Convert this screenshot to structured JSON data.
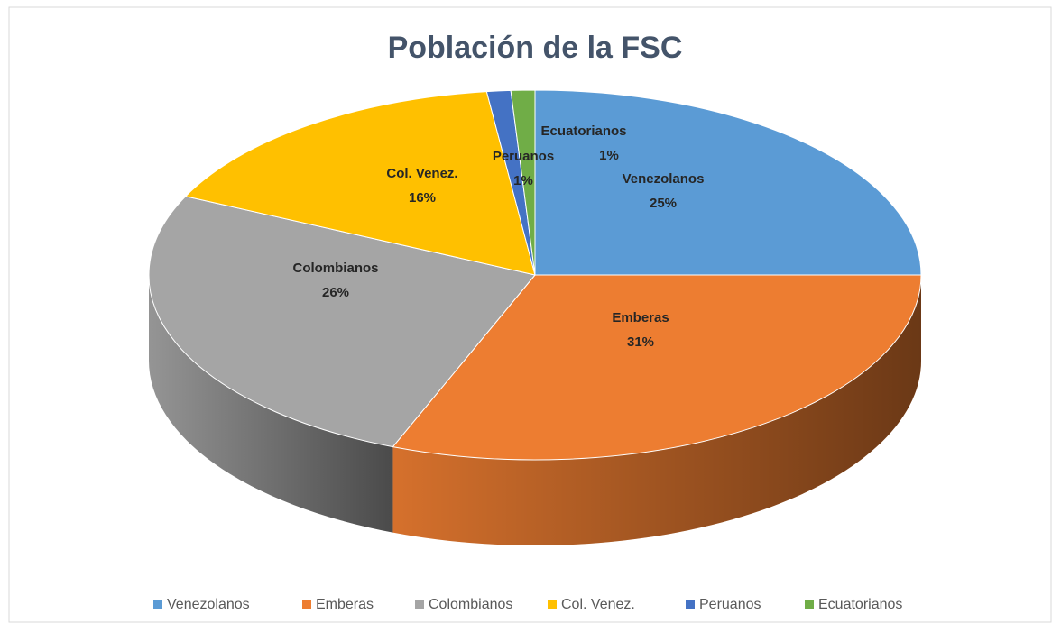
{
  "chart_data": {
    "type": "pie",
    "title": "Población de la FSC",
    "categories": [
      "Venezolanos",
      "Emberas",
      "Colombianos",
      "Col. Venez.",
      "Peruanos",
      "Ecuatorianos"
    ],
    "values": [
      25,
      31,
      26,
      16,
      1,
      1
    ],
    "value_labels": [
      "25%",
      "31%",
      "26%",
      "16%",
      "1%",
      "1%"
    ],
    "colors": [
      "#5b9bd5",
      "#ed7d31",
      "#a5a5a5",
      "#ffc000",
      "#4472c4",
      "#70ad47"
    ],
    "legend": "bottom"
  }
}
